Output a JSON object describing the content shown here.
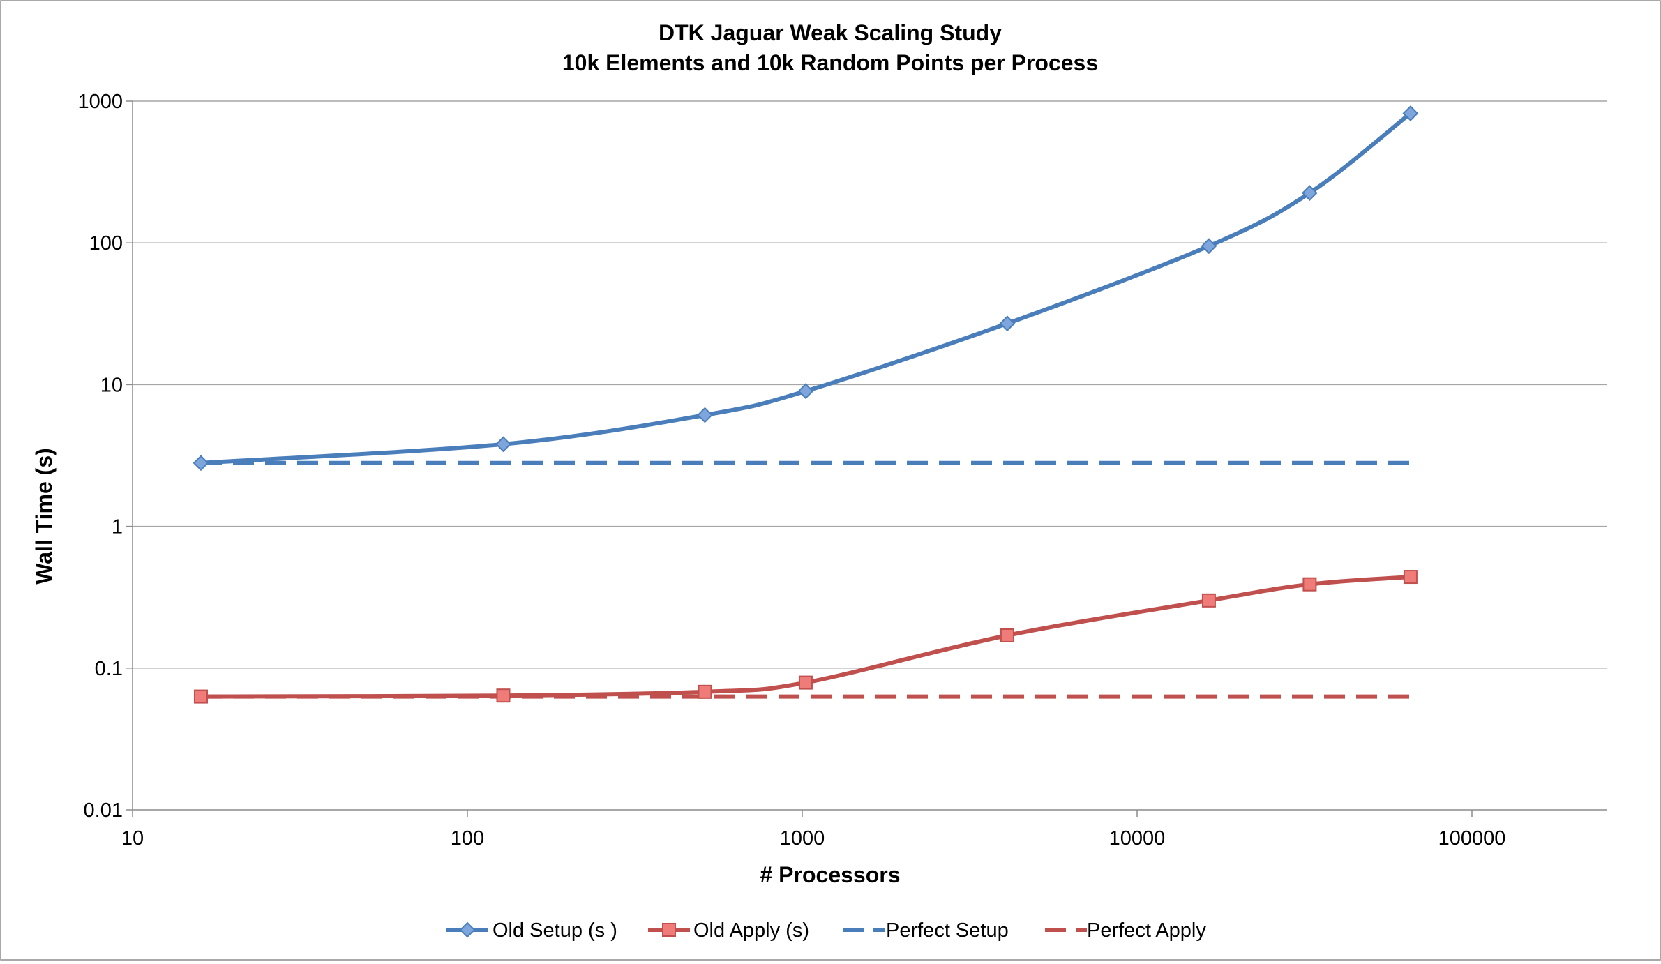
{
  "chart_data": {
    "type": "line",
    "title": "DTK Jaguar Weak Scaling Study",
    "subtitle": "10k Elements and 10k Random Points per Process",
    "xlabel": "# Processors",
    "ylabel": "Wall Time (s)",
    "x_scale": "log",
    "y_scale": "log",
    "xlim": [
      10,
      1000000
    ],
    "ylim": [
      0.01,
      1000
    ],
    "x_ticks": [
      "10",
      "100",
      "1000",
      "10000",
      "100000"
    ],
    "y_ticks": [
      "0.01",
      "0.1",
      "1",
      "10",
      "100",
      "1000"
    ],
    "grid": "horizontal major gridlines",
    "legend_position": "bottom",
    "series": [
      {
        "name": "Old Setup (s )",
        "color": "#4a7ebb",
        "line_style": "solid",
        "marker": "diamond",
        "x": [
          16,
          128,
          512,
          1024,
          4096,
          16384,
          32768,
          65536
        ],
        "y": [
          2.8,
          3.8,
          6.1,
          9.0,
          27,
          95,
          225,
          820
        ]
      },
      {
        "name": "Old Apply (s)",
        "color": "#c0504d",
        "line_style": "solid",
        "marker": "square",
        "x": [
          16,
          128,
          512,
          1024,
          4096,
          16384,
          32768,
          65536
        ],
        "y": [
          0.063,
          0.064,
          0.068,
          0.079,
          0.17,
          0.3,
          0.39,
          0.44
        ]
      },
      {
        "name": "Perfect Setup",
        "color": "#4a7ebb",
        "line_style": "dashed",
        "marker": "none",
        "x": [
          16,
          128,
          512,
          1024,
          4096,
          16384,
          32768,
          65536
        ],
        "y": [
          2.8,
          2.8,
          2.8,
          2.8,
          2.8,
          2.8,
          2.8,
          2.8
        ]
      },
      {
        "name": "Perfect Apply",
        "color": "#c0504d",
        "line_style": "dashed",
        "marker": "none",
        "x": [
          16,
          128,
          512,
          1024,
          4096,
          16384,
          32768,
          65536
        ],
        "y": [
          0.063,
          0.063,
          0.063,
          0.063,
          0.063,
          0.063,
          0.063,
          0.063
        ]
      }
    ]
  }
}
